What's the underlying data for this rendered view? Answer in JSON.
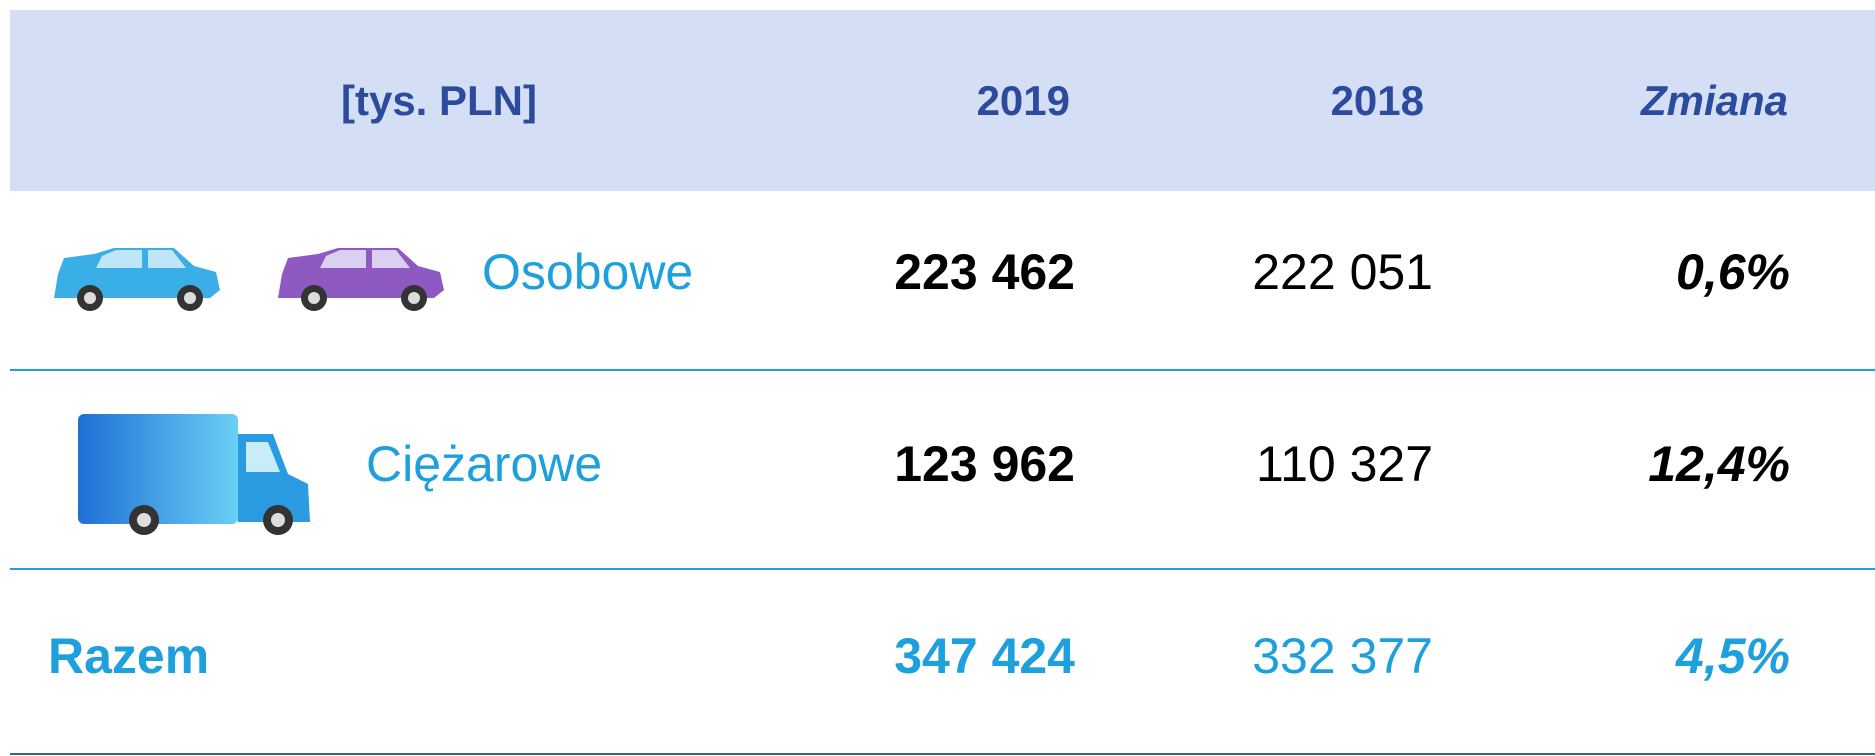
{
  "header": {
    "columns": [
      "[tys. PLN]",
      "2019",
      "2018",
      "Zmiana"
    ]
  },
  "table": {
    "rows": [
      [
        "Osobowe",
        "223 462",
        "222 051",
        "0,6%"
      ],
      [
        "Ciężarowe",
        "123 962",
        "110 327",
        "12,4%"
      ],
      [
        "Razem",
        "347 424",
        "332 377",
        "4,5%"
      ]
    ]
  }
}
